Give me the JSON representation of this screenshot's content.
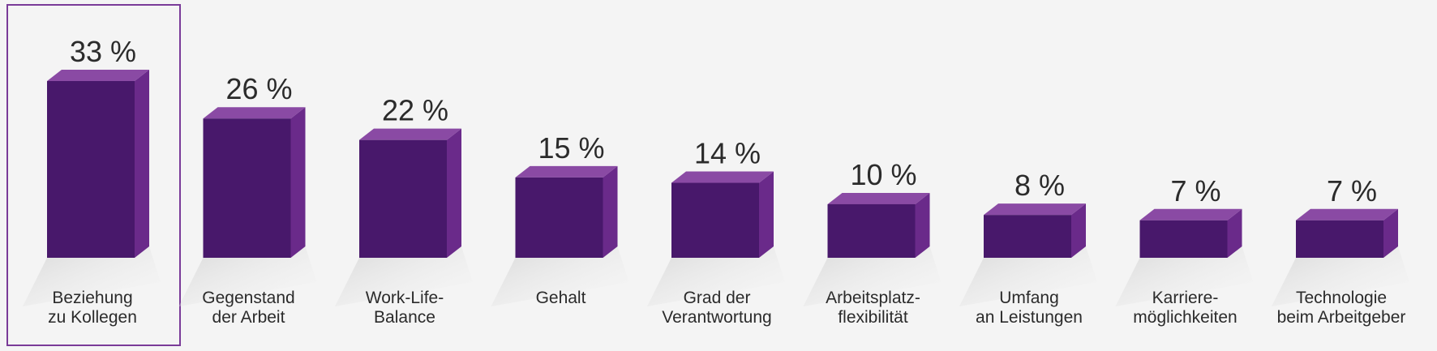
{
  "chart_data": {
    "type": "bar",
    "title": "",
    "xlabel": "",
    "ylabel": "",
    "ylim": [
      0,
      33
    ],
    "grid": false,
    "unit": "%",
    "highlighted_category_index": 0,
    "categories": [
      [
        "Beziehung",
        "zu Kollegen"
      ],
      [
        "Gegenstand",
        "der Arbeit"
      ],
      [
        "Work-Life-",
        "Balance"
      ],
      [
        "Gehalt"
      ],
      [
        "Grad der",
        "Verantwortung"
      ],
      [
        "Arbeitsplatz-",
        "flexibilität"
      ],
      [
        "Umfang",
        "an Leistungen"
      ],
      [
        "Karriere-",
        "möglichkeiten"
      ],
      [
        "Technologie",
        "beim Arbeitgeber"
      ]
    ],
    "values": [
      33,
      26,
      22,
      15,
      14,
      10,
      8,
      7,
      7
    ],
    "value_labels": [
      "33 %",
      "26 %",
      "22 %",
      "15 %",
      "14 %",
      "10 %",
      "8 %",
      "7 %",
      "7 %"
    ]
  },
  "colors": {
    "background": "#f4f4f4",
    "bar_front": "#48186b",
    "bar_top": "#8a4aa4",
    "bar_side": "#6a2a8a",
    "highlight_border": "#7a3b98",
    "text": "#2b2b2b"
  }
}
